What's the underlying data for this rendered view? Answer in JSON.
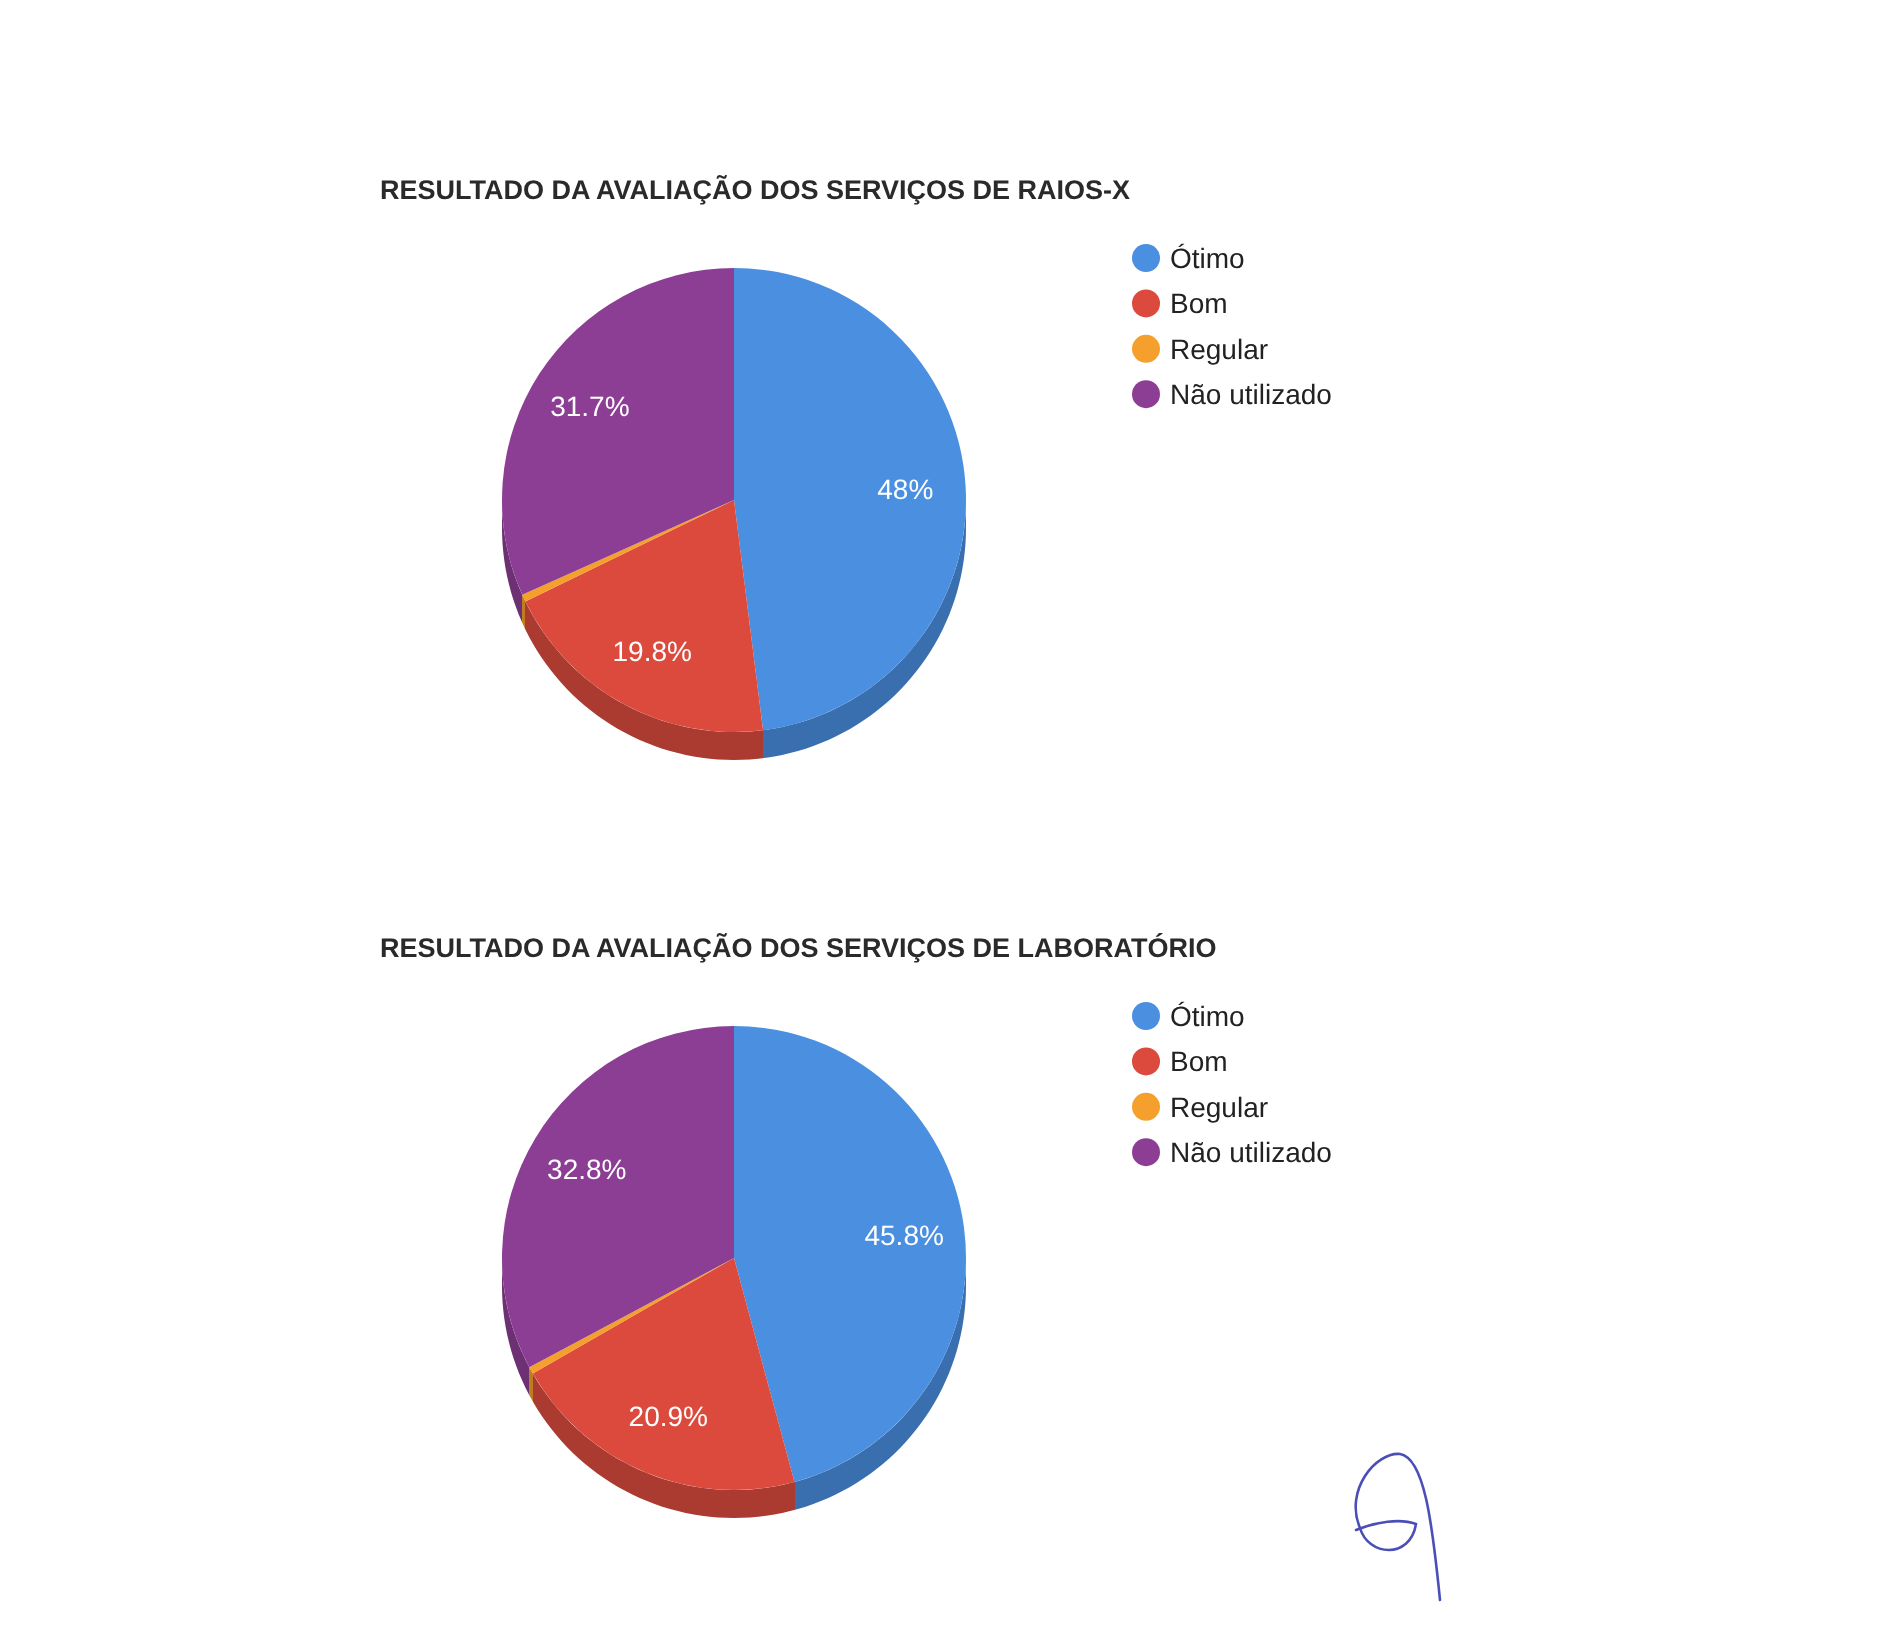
{
  "chart_data": [
    {
      "type": "pie",
      "title": "RESULTADO DA AVALIAÇÃO DOS SERVIÇOS DE RAIOS-X",
      "categories": [
        "Ótimo",
        "Bom",
        "Regular",
        "Não utilizado"
      ],
      "values": [
        48,
        19.8,
        0.5,
        31.7
      ],
      "colors": [
        "#4a8fe0",
        "#dc4a3e",
        "#f5a02c",
        "#8c3d94"
      ],
      "value_labels": [
        "48%",
        "19.8%",
        null,
        "31.7%"
      ],
      "legend": "right"
    },
    {
      "type": "pie",
      "title": "RESULTADO DA AVALIAÇÃO DOS SERVIÇOS DE LABORATÓRIO",
      "categories": [
        "Ótimo",
        "Bom",
        "Regular",
        "Não utilizado"
      ],
      "values": [
        45.8,
        20.9,
        0.5,
        32.8
      ],
      "colors": [
        "#4a8fe0",
        "#dc4a3e",
        "#f5a02c",
        "#8c3d94"
      ],
      "value_labels": [
        "45.8%",
        "20.9%",
        null,
        "32.8%"
      ],
      "legend": "right"
    }
  ]
}
